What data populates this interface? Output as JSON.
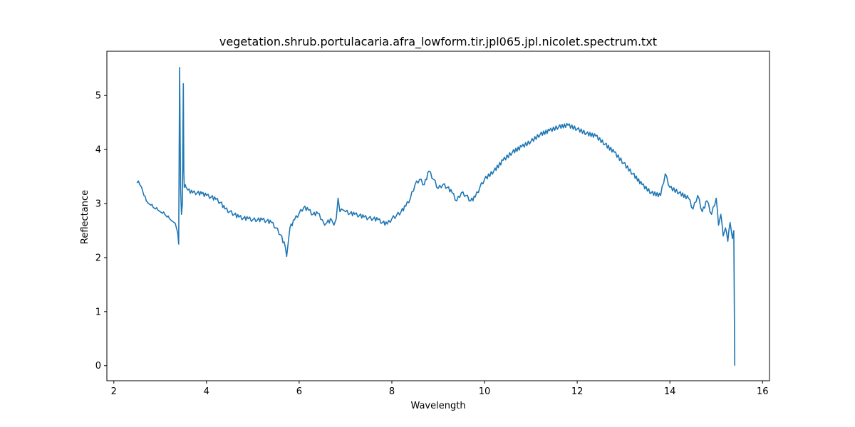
{
  "chart_data": {
    "type": "line",
    "title": "vegetation.shrub.portulacaria.afra_lowform.tir.jpl065.jpl.nicolet.spectrum.txt",
    "xlabel": "Wavelength",
    "ylabel": "Reflectance",
    "xlim": [
      1.85,
      16.15
    ],
    "ylim": [
      -0.28,
      5.82
    ],
    "xticks": [
      2,
      4,
      6,
      8,
      10,
      12,
      14,
      16
    ],
    "yticks": [
      0,
      1,
      2,
      3,
      4,
      5
    ],
    "grid": false,
    "legend": "none",
    "series_color": "#1f77b4",
    "series": [
      {
        "x": [
          2.5,
          2.53,
          2.56,
          2.6,
          2.65,
          2.7,
          2.75,
          2.8,
          2.85,
          2.9,
          2.95,
          3.0,
          3.05,
          3.1,
          3.15,
          3.2,
          3.25,
          3.3,
          3.35,
          3.38,
          3.4,
          3.42,
          3.44,
          3.46,
          3.48,
          3.5,
          3.51,
          3.52,
          3.54,
          3.56,
          3.6,
          3.7,
          3.8,
          3.9,
          4.0,
          4.1,
          4.2,
          4.3,
          4.4,
          4.5,
          4.6,
          4.7,
          4.8,
          4.9,
          5.0,
          5.1,
          5.2,
          5.3,
          5.4,
          5.5,
          5.6,
          5.7,
          5.73,
          5.76,
          5.8,
          5.9,
          6.0,
          6.1,
          6.2,
          6.3,
          6.4,
          6.5,
          6.55,
          6.6,
          6.7,
          6.75,
          6.8,
          6.84,
          6.88,
          6.95,
          7.0,
          7.1,
          7.2,
          7.3,
          7.4,
          7.5,
          7.6,
          7.7,
          7.8,
          7.9,
          8.0,
          8.1,
          8.2,
          8.3,
          8.4,
          8.5,
          8.6,
          8.7,
          8.8,
          8.9,
          9.0,
          9.1,
          9.2,
          9.3,
          9.4,
          9.5,
          9.6,
          9.7,
          9.8,
          9.9,
          10.0,
          10.2,
          10.4,
          10.6,
          10.8,
          11.0,
          11.2,
          11.4,
          11.6,
          11.8,
          12.0,
          12.2,
          12.4,
          12.6,
          12.8,
          13.0,
          13.2,
          13.4,
          13.6,
          13.8,
          13.9,
          14.0,
          14.2,
          14.4,
          14.5,
          14.6,
          14.7,
          14.8,
          14.9,
          15.0,
          15.05,
          15.1,
          15.15,
          15.2,
          15.25,
          15.3,
          15.35,
          15.38,
          15.4
        ],
        "y": [
          3.38,
          3.42,
          3.35,
          3.3,
          3.15,
          3.05,
          3.0,
          2.97,
          2.93,
          2.9,
          2.88,
          2.85,
          2.82,
          2.8,
          2.75,
          2.72,
          2.68,
          2.65,
          2.55,
          2.45,
          2.25,
          5.52,
          3.3,
          2.8,
          3.0,
          5.22,
          3.6,
          3.3,
          3.35,
          3.3,
          3.25,
          3.2,
          3.2,
          3.18,
          3.15,
          3.12,
          3.08,
          3.02,
          2.9,
          2.85,
          2.8,
          2.75,
          2.73,
          2.72,
          2.7,
          2.7,
          2.7,
          2.68,
          2.65,
          2.55,
          2.42,
          2.2,
          2.02,
          2.25,
          2.55,
          2.7,
          2.82,
          2.93,
          2.88,
          2.8,
          2.82,
          2.7,
          2.6,
          2.65,
          2.7,
          2.6,
          2.72,
          3.1,
          2.85,
          2.88,
          2.85,
          2.82,
          2.8,
          2.78,
          2.75,
          2.73,
          2.72,
          2.7,
          2.65,
          2.62,
          2.72,
          2.78,
          2.85,
          2.95,
          3.1,
          3.35,
          3.45,
          3.35,
          3.6,
          3.45,
          3.28,
          3.35,
          3.3,
          3.2,
          3.05,
          3.2,
          3.15,
          3.05,
          3.12,
          3.3,
          3.45,
          3.6,
          3.8,
          3.95,
          4.05,
          4.15,
          4.28,
          4.35,
          4.42,
          4.45,
          4.38,
          4.3,
          4.25,
          4.1,
          3.95,
          3.75,
          3.55,
          3.35,
          3.2,
          3.15,
          3.55,
          3.3,
          3.2,
          3.1,
          2.9,
          3.15,
          2.85,
          3.05,
          2.8,
          3.1,
          2.6,
          2.8,
          2.4,
          2.55,
          2.3,
          2.65,
          2.35,
          2.5,
          0.0
        ]
      }
    ]
  }
}
